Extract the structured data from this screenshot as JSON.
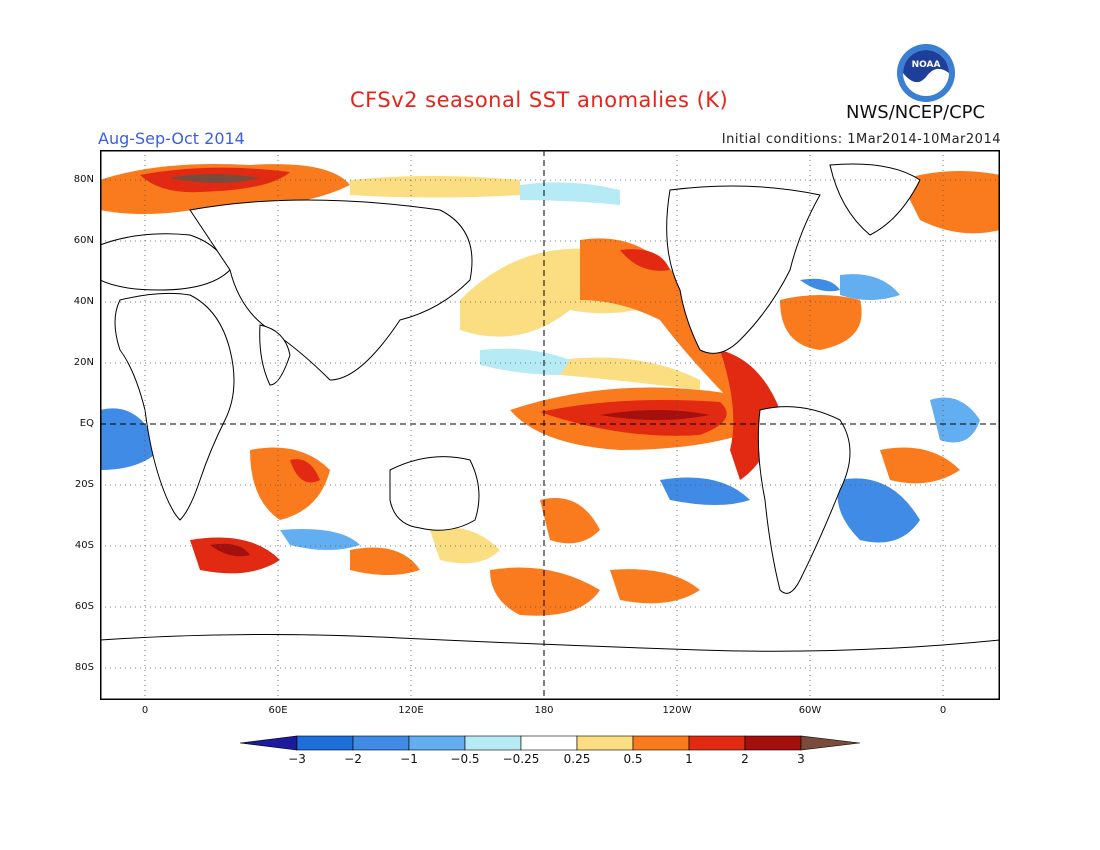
{
  "header": {
    "title": "CFSv2 seasonal SST anomalies (K)",
    "season": "Aug-Sep-Oct 2014",
    "initial_conditions": "Initial conditions: 1Mar2014-10Mar2014",
    "organization": "NWS/NCEP/CPC",
    "logo_text": "NOAA"
  },
  "map": {
    "lat_labels": [
      "80N",
      "60N",
      "40N",
      "20N",
      "EQ",
      "20S",
      "40S",
      "60S",
      "80S"
    ],
    "lon_labels": [
      "0",
      "60E",
      "120E",
      "180",
      "120W",
      "60W",
      "0"
    ]
  },
  "colorbar": {
    "ticks": [
      "−3",
      "−2",
      "−1",
      "−0.5",
      "−0.25",
      "0.25",
      "0.5",
      "1",
      "2",
      "3"
    ],
    "colors": [
      "#1d1a9e",
      "#1e6fd9",
      "#3f8be6",
      "#62aef0",
      "#b6ebf6",
      "#ffffff",
      "#fbdd82",
      "#fa7a1e",
      "#e22a12",
      "#a3100d",
      "#7a4a3a"
    ]
  }
}
